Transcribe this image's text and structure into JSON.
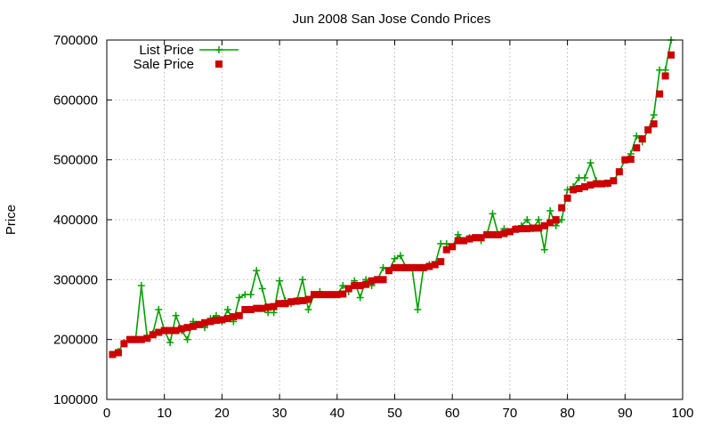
{
  "chart_data": {
    "type": "line",
    "title": "Jun 2008 San Jose Condo Prices",
    "ylabel": "Price",
    "xlabel": "",
    "xlim": [
      0,
      100
    ],
    "ylim": [
      100000,
      700000
    ],
    "x_ticks": [
      0,
      10,
      20,
      30,
      40,
      50,
      60,
      70,
      80,
      90,
      100
    ],
    "y_ticks": [
      100000,
      200000,
      300000,
      400000,
      500000,
      600000,
      700000
    ],
    "grid": true,
    "legend_position": "top-left",
    "series": [
      {
        "name": "List Price",
        "color": "#00a000",
        "marker": "plus",
        "line": true,
        "values": [
          175000,
          180000,
          195000,
          200000,
          200000,
          290000,
          205000,
          210000,
          250000,
          215000,
          195000,
          240000,
          215000,
          200000,
          230000,
          225000,
          220000,
          235000,
          240000,
          230000,
          250000,
          230000,
          270000,
          275000,
          275000,
          315000,
          285000,
          245000,
          245000,
          298000,
          265000,
          260000,
          265000,
          300000,
          250000,
          275000,
          280000,
          275000,
          275000,
          275000,
          290000,
          280000,
          298000,
          270000,
          300000,
          290000,
          300000,
          320000,
          315000,
          335000,
          340000,
          320000,
          320000,
          250000,
          320000,
          325000,
          325000,
          360000,
          360000,
          355000,
          375000,
          365000,
          370000,
          370000,
          365000,
          375000,
          410000,
          375000,
          385000,
          380000,
          385000,
          390000,
          400000,
          385000,
          400000,
          350000,
          415000,
          390000,
          400000,
          450000,
          455000,
          470000,
          470000,
          495000,
          465000,
          460000,
          460000,
          465000,
          480000,
          500000,
          510000,
          540000,
          530000,
          550000,
          575000,
          650000,
          650000,
          700000
        ]
      },
      {
        "name": "Sale Price",
        "color": "#cc0000",
        "marker": "square",
        "line": false,
        "values": [
          175000,
          178000,
          193000,
          200000,
          200000,
          200000,
          202000,
          208000,
          212000,
          215000,
          215000,
          215000,
          218000,
          220000,
          222000,
          225000,
          228000,
          230000,
          232000,
          233000,
          235000,
          238000,
          240000,
          250000,
          250000,
          252000,
          252000,
          254000,
          255000,
          260000,
          260000,
          263000,
          264000,
          265000,
          267000,
          275000,
          275000,
          275000,
          275000,
          275000,
          276000,
          285000,
          290000,
          290000,
          292000,
          298000,
          300000,
          300000,
          315000,
          320000,
          320000,
          320000,
          320000,
          320000,
          320000,
          322000,
          325000,
          330000,
          350000,
          355000,
          365000,
          365000,
          368000,
          370000,
          370000,
          375000,
          375000,
          375000,
          377000,
          380000,
          384000,
          385000,
          385000,
          386000,
          386000,
          390000,
          395000,
          400000,
          420000,
          436000,
          450000,
          452000,
          455000,
          458000,
          460000,
          460000,
          461000,
          465000,
          480000,
          500000,
          501000,
          520000,
          535000,
          550000,
          560000,
          610000,
          640000,
          675000
        ]
      }
    ]
  }
}
